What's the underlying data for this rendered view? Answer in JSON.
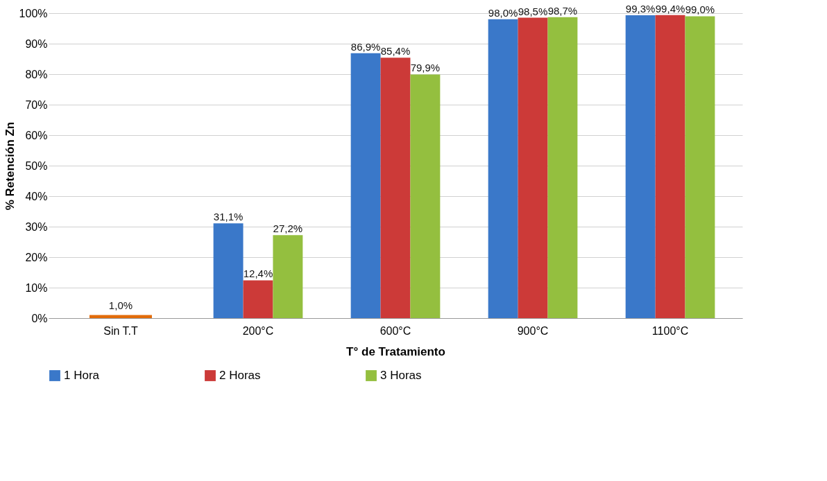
{
  "chart_data": {
    "type": "bar",
    "xlabel": "T°  de Tratamiento",
    "ylabel": "% Retención Zn",
    "categories": [
      "Sin T.T",
      "200°C",
      "600°C",
      "900°C",
      "1100°C"
    ],
    "series": [
      {
        "name": "1 Hora",
        "color": "#3a78c9",
        "values": [
          null,
          31.1,
          86.9,
          98.0,
          99.3
        ],
        "value_labels": [
          null,
          "31,1%",
          "86,9%",
          "98,0%",
          "99,3%"
        ]
      },
      {
        "name": "2 Horas",
        "color": "#cc3a38",
        "values": [
          null,
          12.4,
          85.4,
          98.5,
          99.4
        ],
        "value_labels": [
          null,
          "12,4%",
          "85,4%",
          "98,5%",
          "99,4%"
        ]
      },
      {
        "name": "3 Horas",
        "color": "#94bf3f",
        "values": [
          null,
          27.2,
          79.9,
          98.7,
          99.0
        ],
        "value_labels": [
          null,
          "27,2%",
          "79,9%",
          "98,7%",
          "99,0%"
        ]
      },
      {
        "color": "#e36c0a",
        "values": [
          1.0,
          null,
          null,
          null,
          null
        ],
        "value_labels": [
          "1,0%",
          null,
          null,
          null,
          null
        ]
      }
    ],
    "ylim": [
      0,
      100
    ],
    "yticks": [
      {
        "value": 0,
        "label": "0%"
      },
      {
        "value": 10,
        "label": "10%"
      },
      {
        "value": 20,
        "label": "20%"
      },
      {
        "value": 30,
        "label": "30%"
      },
      {
        "value": 40,
        "label": "40%"
      },
      {
        "value": 50,
        "label": "50%"
      },
      {
        "value": 60,
        "label": "60%"
      },
      {
        "value": 70,
        "label": "70%"
      },
      {
        "value": 80,
        "label": "80%"
      },
      {
        "value": 90,
        "label": "90%"
      },
      {
        "value": 100,
        "label": "100%"
      }
    ],
    "grid": "y",
    "legend": "bottom"
  }
}
